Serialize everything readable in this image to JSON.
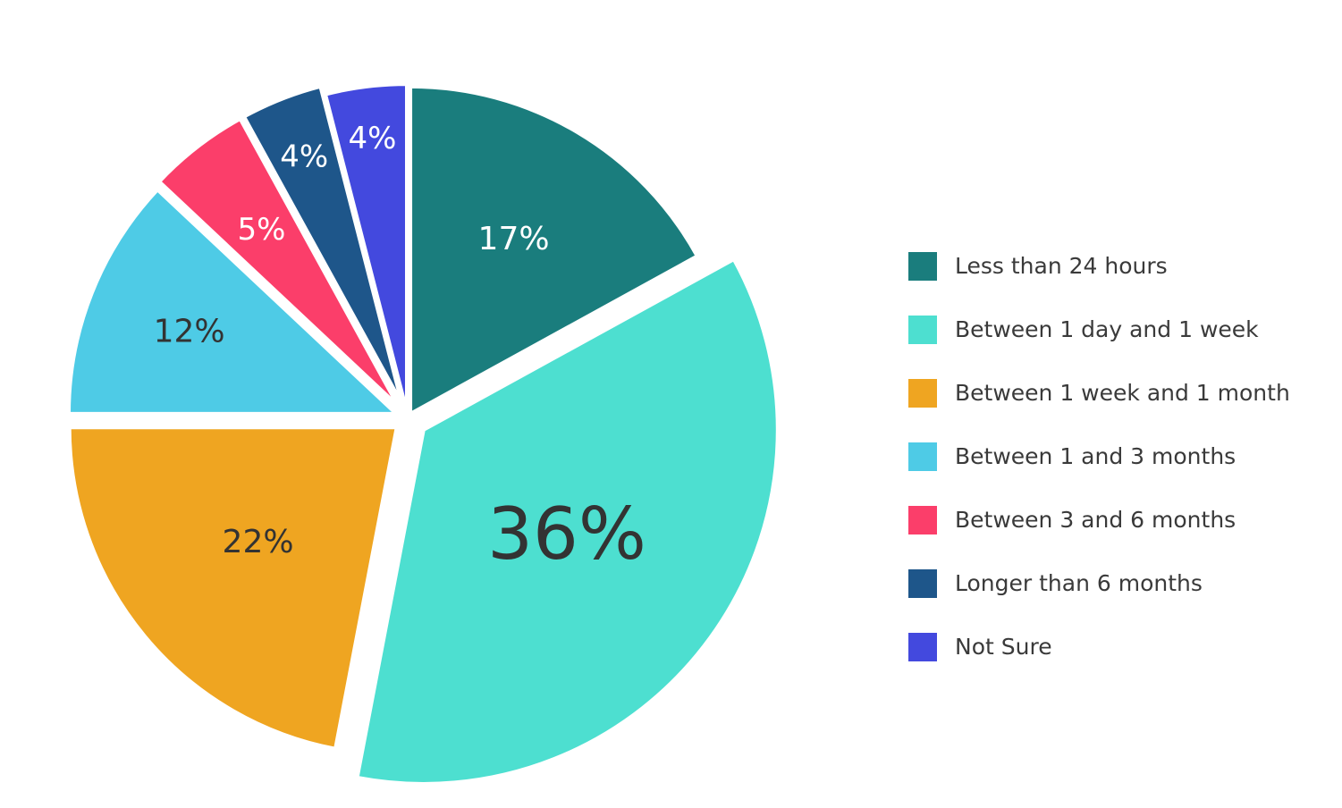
{
  "chart_data": {
    "type": "pie",
    "title": "",
    "legend_position": "right",
    "slices": [
      {
        "label": "Less than 24 hours",
        "value": 17,
        "value_label": "17%",
        "color": "#1a7d7d",
        "label_color": "#ffffff"
      },
      {
        "label": "Between 1 day and 1 week",
        "value": 36,
        "value_label": "36%",
        "color": "#4ddfd0",
        "label_color": "#333333"
      },
      {
        "label": "Between 1 week and 1 month",
        "value": 22,
        "value_label": "22%",
        "color": "#efa521",
        "label_color": "#333333"
      },
      {
        "label": "Between 1 and 3 months",
        "value": 12,
        "value_label": "12%",
        "color": "#4ecbe6",
        "label_color": "#333333"
      },
      {
        "label": "Between 3 and 6 months",
        "value": 5,
        "value_label": "5%",
        "color": "#fb3e6a",
        "label_color": "#ffffff"
      },
      {
        "label": "Longer than 6 months",
        "value": 4,
        "value_label": "4%",
        "color": "#1e568a",
        "label_color": "#ffffff"
      },
      {
        "label": "Not Sure",
        "value": 4,
        "value_label": "4%",
        "color": "#4349de",
        "label_color": "#ffffff"
      }
    ]
  }
}
